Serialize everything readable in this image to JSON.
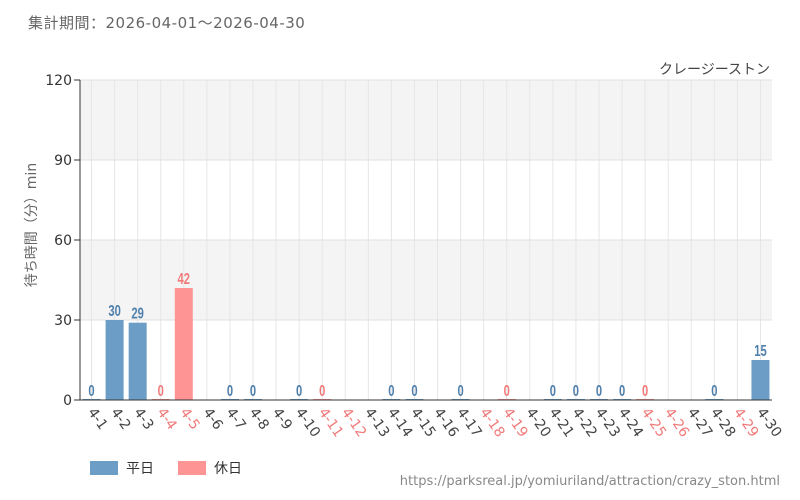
{
  "period_label": "集計期間：2026-04-01～2026-04-30",
  "source_url": "https://parksreal.jp/yomiuriland/attraction/crazy_ston.html",
  "legend": [
    {
      "label": "平日",
      "color": "#6b9dc6"
    },
    {
      "label": "休日",
      "color": "#ff9494"
    }
  ],
  "chart_data": {
    "type": "bar",
    "title": "クレージーストン",
    "ylabel": "待ち時間（分）min",
    "xlabel": "",
    "ylim": [
      0,
      120
    ],
    "yticks": [
      0,
      30,
      60,
      90,
      120
    ],
    "grid": true,
    "categories": [
      "4-1",
      "4-2",
      "4-3",
      "4-4",
      "4-5",
      "4-6",
      "4-7",
      "4-8",
      "4-9",
      "4-10",
      "4-11",
      "4-12",
      "4-13",
      "4-14",
      "4-15",
      "4-16",
      "4-17",
      "4-18",
      "4-19",
      "4-20",
      "4-21",
      "4-22",
      "4-23",
      "4-24",
      "4-25",
      "4-26",
      "4-27",
      "4-28",
      "4-29",
      "4-30"
    ],
    "values": [
      0,
      30,
      29,
      0,
      42,
      null,
      0,
      0,
      null,
      0,
      0,
      null,
      null,
      0,
      0,
      null,
      0,
      null,
      0,
      null,
      0,
      0,
      0,
      0,
      0,
      null,
      null,
      0,
      null,
      15
    ],
    "holiday": [
      false,
      false,
      false,
      true,
      true,
      false,
      false,
      false,
      false,
      false,
      true,
      true,
      false,
      false,
      false,
      false,
      false,
      true,
      true,
      false,
      false,
      false,
      false,
      false,
      true,
      true,
      false,
      false,
      true,
      false
    ],
    "colors": {
      "weekday": "#6b9dc6",
      "holiday": "#ff9494",
      "weekday_text": "#4e7fab",
      "holiday_text": "#f07a7a",
      "axis_text": "#444444"
    }
  }
}
